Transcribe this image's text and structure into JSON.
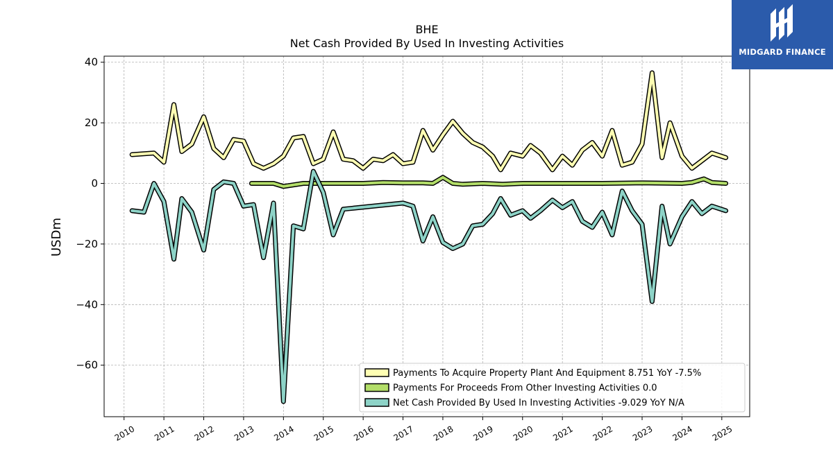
{
  "chart_data": {
    "type": "line",
    "title": "BHE",
    "subtitle": "Net Cash Provided By Used In Investing Activities",
    "ylabel": "USDm",
    "xlabel": "",
    "ylim": [
      -77,
      42
    ],
    "xlim": [
      2009.5,
      2025.7
    ],
    "yticks": [
      40,
      20,
      0,
      -20,
      -40,
      -60
    ],
    "ytick_labels": [
      "40",
      "20",
      "0",
      "−20",
      "−40",
      "−60"
    ],
    "xticks": [
      2010,
      2011,
      2012,
      2013,
      2014,
      2015,
      2016,
      2017,
      2018,
      2019,
      2020,
      2021,
      2022,
      2023,
      2024,
      2025
    ],
    "grid": true,
    "legend_position": "lower-right",
    "series": [
      {
        "name": "Payments To Acquire Property Plant And Equipment",
        "legend": "Payments To Acquire Property Plant And Equipment  8.751 YoY -7.5%",
        "color": "#ffffb3",
        "points": [
          [
            2010.2,
            9.5
          ],
          [
            2010.75,
            10.0
          ],
          [
            2011.0,
            7.0
          ],
          [
            2011.25,
            26.0
          ],
          [
            2011.45,
            10.5
          ],
          [
            2011.7,
            13.0
          ],
          [
            2012.0,
            22.0
          ],
          [
            2012.25,
            11.5
          ],
          [
            2012.5,
            8.5
          ],
          [
            2012.75,
            14.5
          ],
          [
            2013.0,
            14.0
          ],
          [
            2013.25,
            6.5
          ],
          [
            2013.5,
            5.0
          ],
          [
            2013.75,
            6.5
          ],
          [
            2014.0,
            9.0
          ],
          [
            2014.25,
            15.0
          ],
          [
            2014.5,
            15.5
          ],
          [
            2014.75,
            6.5
          ],
          [
            2015.0,
            8.0
          ],
          [
            2015.25,
            17.0
          ],
          [
            2015.5,
            8.0
          ],
          [
            2015.75,
            7.5
          ],
          [
            2016.0,
            5.0
          ],
          [
            2016.25,
            8.0
          ],
          [
            2016.5,
            7.5
          ],
          [
            2016.75,
            9.5
          ],
          [
            2017.0,
            6.5
          ],
          [
            2017.25,
            7.0
          ],
          [
            2017.5,
            17.5
          ],
          [
            2017.75,
            11.0
          ],
          [
            2018.0,
            16.0
          ],
          [
            2018.25,
            20.5
          ],
          [
            2018.5,
            16.5
          ],
          [
            2018.75,
            13.5
          ],
          [
            2019.0,
            12.0
          ],
          [
            2019.25,
            9.0
          ],
          [
            2019.45,
            4.5
          ],
          [
            2019.7,
            10.0
          ],
          [
            2020.0,
            9.0
          ],
          [
            2020.2,
            12.5
          ],
          [
            2020.45,
            10.0
          ],
          [
            2020.75,
            4.5
          ],
          [
            2021.0,
            9.0
          ],
          [
            2021.25,
            6.0
          ],
          [
            2021.5,
            11.0
          ],
          [
            2021.75,
            13.5
          ],
          [
            2022.0,
            9.0
          ],
          [
            2022.25,
            17.5
          ],
          [
            2022.5,
            6.0
          ],
          [
            2022.75,
            7.0
          ],
          [
            2023.0,
            13.0
          ],
          [
            2023.25,
            36.5
          ],
          [
            2023.5,
            8.5
          ],
          [
            2023.7,
            20.0
          ],
          [
            2024.0,
            9.0
          ],
          [
            2024.25,
            5.0
          ],
          [
            2024.5,
            7.5
          ],
          [
            2024.75,
            10.0
          ],
          [
            2025.1,
            8.5
          ]
        ]
      },
      {
        "name": "Payments For Proceeds From Other Investing Activities",
        "legend": "Payments For Proceeds From Other Investing Activities  0.0",
        "color": "#b3de69",
        "points": [
          [
            2013.2,
            0.0
          ],
          [
            2013.75,
            0.0
          ],
          [
            2014.0,
            -1.0
          ],
          [
            2014.5,
            0.0
          ],
          [
            2015.0,
            0.0
          ],
          [
            2015.5,
            0.0
          ],
          [
            2016.0,
            0.0
          ],
          [
            2016.5,
            0.3
          ],
          [
            2017.0,
            0.2
          ],
          [
            2017.5,
            0.2
          ],
          [
            2017.75,
            0.0
          ],
          [
            2018.0,
            2.0
          ],
          [
            2018.25,
            0.0
          ],
          [
            2018.5,
            -0.3
          ],
          [
            2019.0,
            0.0
          ],
          [
            2019.5,
            -0.3
          ],
          [
            2020.0,
            0.0
          ],
          [
            2021.0,
            0.0
          ],
          [
            2022.0,
            0.0
          ],
          [
            2023.0,
            0.2
          ],
          [
            2024.0,
            0.0
          ],
          [
            2024.25,
            0.3
          ],
          [
            2024.55,
            1.5
          ],
          [
            2024.75,
            0.3
          ],
          [
            2025.1,
            0.0
          ]
        ]
      },
      {
        "name": "Net Cash Provided By Used In Investing Activities",
        "legend": "Net Cash Provided By Used In Investing Activities  -9.029 YoY N/A",
        "color": "#8dd3c7",
        "points": [
          [
            2010.2,
            -9.0
          ],
          [
            2010.5,
            -9.5
          ],
          [
            2010.75,
            0.0
          ],
          [
            2011.0,
            -6.0
          ],
          [
            2011.25,
            -25.0
          ],
          [
            2011.45,
            -5.0
          ],
          [
            2011.7,
            -9.5
          ],
          [
            2012.0,
            -22.0
          ],
          [
            2012.25,
            -2.0
          ],
          [
            2012.5,
            0.5
          ],
          [
            2012.75,
            0.0
          ],
          [
            2013.0,
            -7.5
          ],
          [
            2013.25,
            -7.0
          ],
          [
            2013.5,
            -24.5
          ],
          [
            2013.75,
            -6.5
          ],
          [
            2014.0,
            -72.0
          ],
          [
            2014.25,
            -14.0
          ],
          [
            2014.5,
            -15.0
          ],
          [
            2014.75,
            4.0
          ],
          [
            2015.0,
            -3.0
          ],
          [
            2015.25,
            -17.0
          ],
          [
            2015.5,
            -8.5
          ],
          [
            2017.0,
            -6.5
          ],
          [
            2017.25,
            -7.5
          ],
          [
            2017.5,
            -19.0
          ],
          [
            2017.75,
            -11.0
          ],
          [
            2018.0,
            -19.5
          ],
          [
            2018.25,
            -21.5
          ],
          [
            2018.5,
            -20.0
          ],
          [
            2018.75,
            -14.0
          ],
          [
            2019.0,
            -13.5
          ],
          [
            2019.25,
            -10.0
          ],
          [
            2019.45,
            -5.0
          ],
          [
            2019.7,
            -10.5
          ],
          [
            2020.0,
            -9.0
          ],
          [
            2020.2,
            -11.5
          ],
          [
            2020.45,
            -9.0
          ],
          [
            2020.75,
            -5.5
          ],
          [
            2021.0,
            -8.0
          ],
          [
            2021.25,
            -6.0
          ],
          [
            2021.5,
            -12.5
          ],
          [
            2021.75,
            -14.5
          ],
          [
            2022.0,
            -9.5
          ],
          [
            2022.25,
            -17.0
          ],
          [
            2022.5,
            -2.5
          ],
          [
            2022.75,
            -9.0
          ],
          [
            2023.0,
            -13.5
          ],
          [
            2023.25,
            -39.0
          ],
          [
            2023.5,
            -7.5
          ],
          [
            2023.7,
            -20.0
          ],
          [
            2024.0,
            -11.0
          ],
          [
            2024.25,
            -6.0
          ],
          [
            2024.5,
            -10.0
          ],
          [
            2024.75,
            -7.5
          ],
          [
            2025.1,
            -9.0
          ]
        ]
      }
    ]
  },
  "logo": {
    "text": "MIDGARD FINANCE"
  }
}
